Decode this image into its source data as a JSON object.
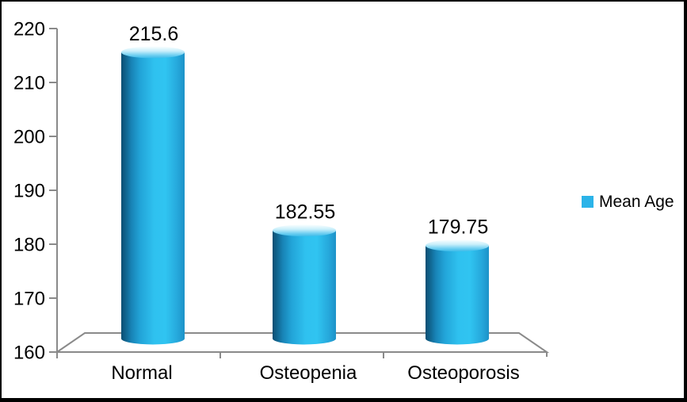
{
  "figure": {
    "background": "#FFFFFF",
    "border_color": "#000000"
  },
  "chart_data": {
    "type": "bar",
    "style": "3d-cylinder",
    "title": "",
    "xlabel": "",
    "ylabel": "",
    "categories": [
      "Normal",
      "Osteopenia",
      "Osteoporosis"
    ],
    "series": [
      {
        "name": "Mean Age",
        "values": [
          215.6,
          182.55,
          179.75
        ]
      }
    ],
    "data_labels": [
      "215.6",
      "182.55",
      "179.75"
    ],
    "ylim": [
      160,
      220
    ],
    "yticks": [
      160,
      170,
      180,
      190,
      200,
      210,
      220
    ],
    "grid": false,
    "legend": {
      "position": "right-middle",
      "entries": [
        {
          "label": "Mean Age",
          "marker_color": "#2BB3E8"
        }
      ]
    },
    "colors": {
      "axis_line": "#8A8A8A",
      "text": "#000000",
      "floor_fill": "#FFFFFF",
      "cylinder_gradient": [
        {
          "offset": 0,
          "color": "#0C4E72"
        },
        {
          "offset": 0.07,
          "color": "#10648E"
        },
        {
          "offset": 0.16,
          "color": "#1883B6"
        },
        {
          "offset": 0.3,
          "color": "#22A4D8"
        },
        {
          "offset": 0.52,
          "color": "#2FC1EF"
        },
        {
          "offset": 0.7,
          "color": "#30C4F1"
        },
        {
          "offset": 0.88,
          "color": "#26A9DC"
        },
        {
          "offset": 1,
          "color": "#1D92C8"
        }
      ],
      "cylinder_top_gradient": [
        {
          "offset": 0,
          "color": "#FDFFFF"
        },
        {
          "offset": 0.4,
          "color": "#C9EFFB"
        },
        {
          "offset": 0.75,
          "color": "#6FCFF1"
        },
        {
          "offset": 1,
          "color": "#3ABAE8"
        }
      ]
    }
  }
}
